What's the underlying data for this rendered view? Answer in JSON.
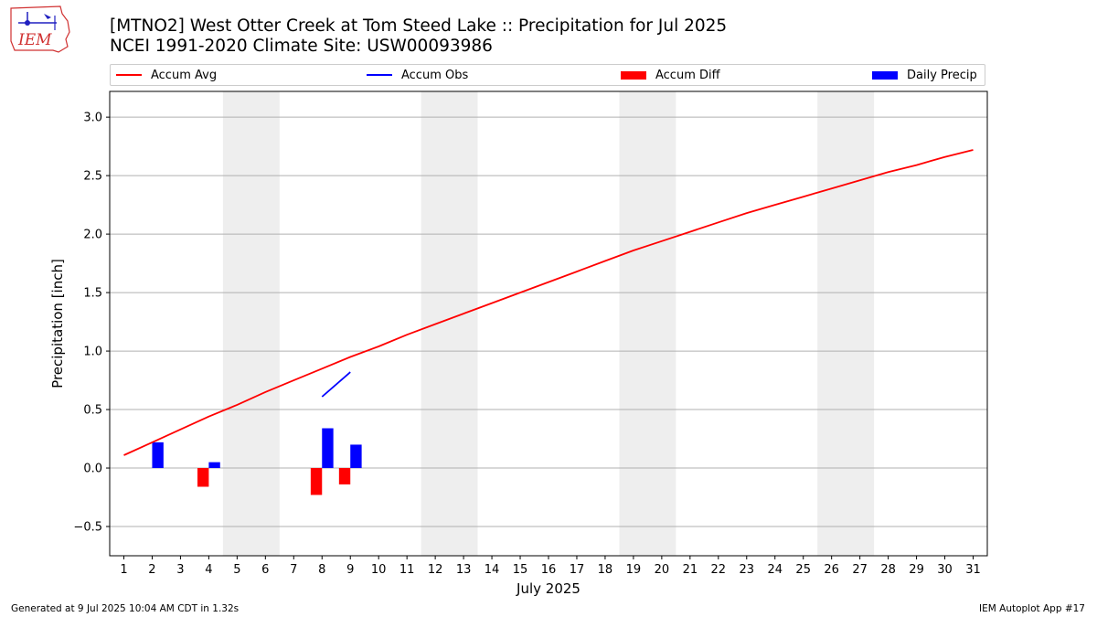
{
  "header": {
    "logo_text": "IEM",
    "title": "[MTNO2] West Otter Creek at Tom Steed Lake :: Precipitation for Jul 2025",
    "subtitle": "NCEI 1991-2020 Climate Site: USW00093986"
  },
  "legend": {
    "items": [
      {
        "label": "Accum Avg",
        "kind": "line",
        "color": "#ff0000"
      },
      {
        "label": "Accum Obs",
        "kind": "line",
        "color": "#0000ff"
      },
      {
        "label": "Accum Diff",
        "kind": "box",
        "color": "#ff0000"
      },
      {
        "label": "Daily Precip",
        "kind": "box",
        "color": "#0000ff"
      }
    ]
  },
  "footer": {
    "generated": "Generated at 9 Jul 2025 10:04 AM CDT in 1.32s",
    "app": "IEM Autoplot App #17"
  },
  "chart_data": {
    "type": "bar",
    "xlabel": "July 2025",
    "ylabel": "Precipitation [inch]",
    "xlim": [
      0.5,
      31.5
    ],
    "ylim": [
      -0.75,
      3.22
    ],
    "x_ticks": [
      1,
      2,
      3,
      4,
      5,
      6,
      7,
      8,
      9,
      10,
      11,
      12,
      13,
      14,
      15,
      16,
      17,
      18,
      19,
      20,
      21,
      22,
      23,
      24,
      25,
      26,
      27,
      28,
      29,
      30,
      31
    ],
    "y_ticks": [
      -0.5,
      0.0,
      0.5,
      1.0,
      1.5,
      2.0,
      2.5,
      3.0
    ],
    "y_tick_labels": [
      "−0.5",
      "0.0",
      "0.5",
      "1.0",
      "1.5",
      "2.0",
      "2.5",
      "3.0"
    ],
    "grid": "horizontal",
    "legend_position": "top",
    "weekend_shading": [
      [
        4.5,
        6.5
      ],
      [
        11.5,
        13.5
      ],
      [
        18.5,
        20.5
      ],
      [
        25.5,
        27.5
      ]
    ],
    "accum_avg": {
      "name": "Accum Avg",
      "color": "#ff0000",
      "days": [
        1,
        2,
        3,
        4,
        5,
        6,
        7,
        8,
        9,
        10,
        11,
        12,
        13,
        14,
        15,
        16,
        17,
        18,
        19,
        20,
        21,
        22,
        23,
        24,
        25,
        26,
        27,
        28,
        29,
        30,
        31
      ],
      "values": [
        0.11,
        0.22,
        0.33,
        0.44,
        0.54,
        0.65,
        0.75,
        0.85,
        0.95,
        1.04,
        1.14,
        1.23,
        1.32,
        1.41,
        1.5,
        1.59,
        1.68,
        1.77,
        1.86,
        1.94,
        2.02,
        2.1,
        2.18,
        2.25,
        2.32,
        2.39,
        2.46,
        2.53,
        2.59,
        2.66,
        2.72
      ]
    },
    "accum_obs": {
      "name": "Accum Obs",
      "color": "#0000ff",
      "days": [
        8,
        9
      ],
      "values": [
        0.61,
        0.82
      ]
    },
    "accum_diff": {
      "name": "Accum Diff",
      "color": "#ff0000",
      "days": [
        4,
        8,
        9
      ],
      "values": [
        -0.16,
        -0.23,
        -0.14
      ]
    },
    "daily_precip": {
      "name": "Daily Precip",
      "color": "#0000ff",
      "days": [
        2,
        4,
        8,
        9
      ],
      "values": [
        0.22,
        0.05,
        0.34,
        0.2
      ]
    }
  }
}
